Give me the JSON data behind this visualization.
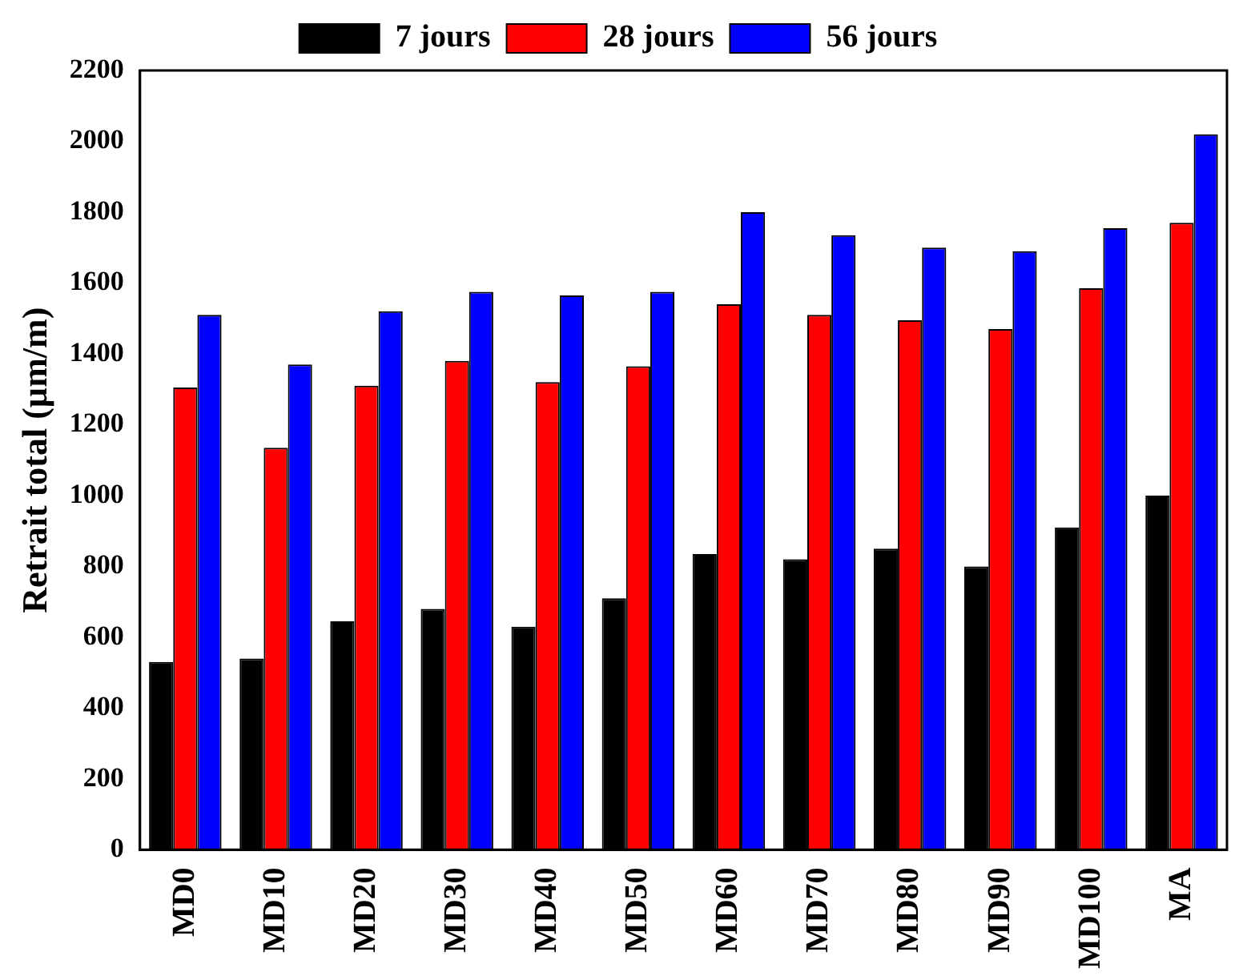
{
  "chart_data": {
    "type": "bar",
    "ylabel": "Retrait total (µm/m)",
    "categories": [
      "MD0",
      "MD10",
      "MD20",
      "MD30",
      "MD40",
      "MD50",
      "MD60",
      "MD70",
      "MD80",
      "MD90",
      "MD100",
      "MA"
    ],
    "series": [
      {
        "name": "7 jours",
        "color": "#000000",
        "values": [
          530,
          540,
          645,
          680,
          630,
          710,
          835,
          820,
          850,
          800,
          910,
          1000
        ]
      },
      {
        "name": "28 jours",
        "color": "#ff0000",
        "values": [
          1305,
          1135,
          1310,
          1380,
          1320,
          1365,
          1540,
          1510,
          1495,
          1470,
          1585,
          1770
        ]
      },
      {
        "name": "56 jours",
        "color": "#0000ff",
        "values": [
          1510,
          1370,
          1520,
          1575,
          1565,
          1575,
          1800,
          1735,
          1700,
          1690,
          1755,
          2020
        ]
      }
    ],
    "ylim": [
      0,
      2200
    ],
    "yticks": [
      0,
      200,
      400,
      600,
      800,
      1000,
      1200,
      1400,
      1600,
      1800,
      2000,
      2200
    ],
    "grid": false,
    "legend": "top"
  }
}
